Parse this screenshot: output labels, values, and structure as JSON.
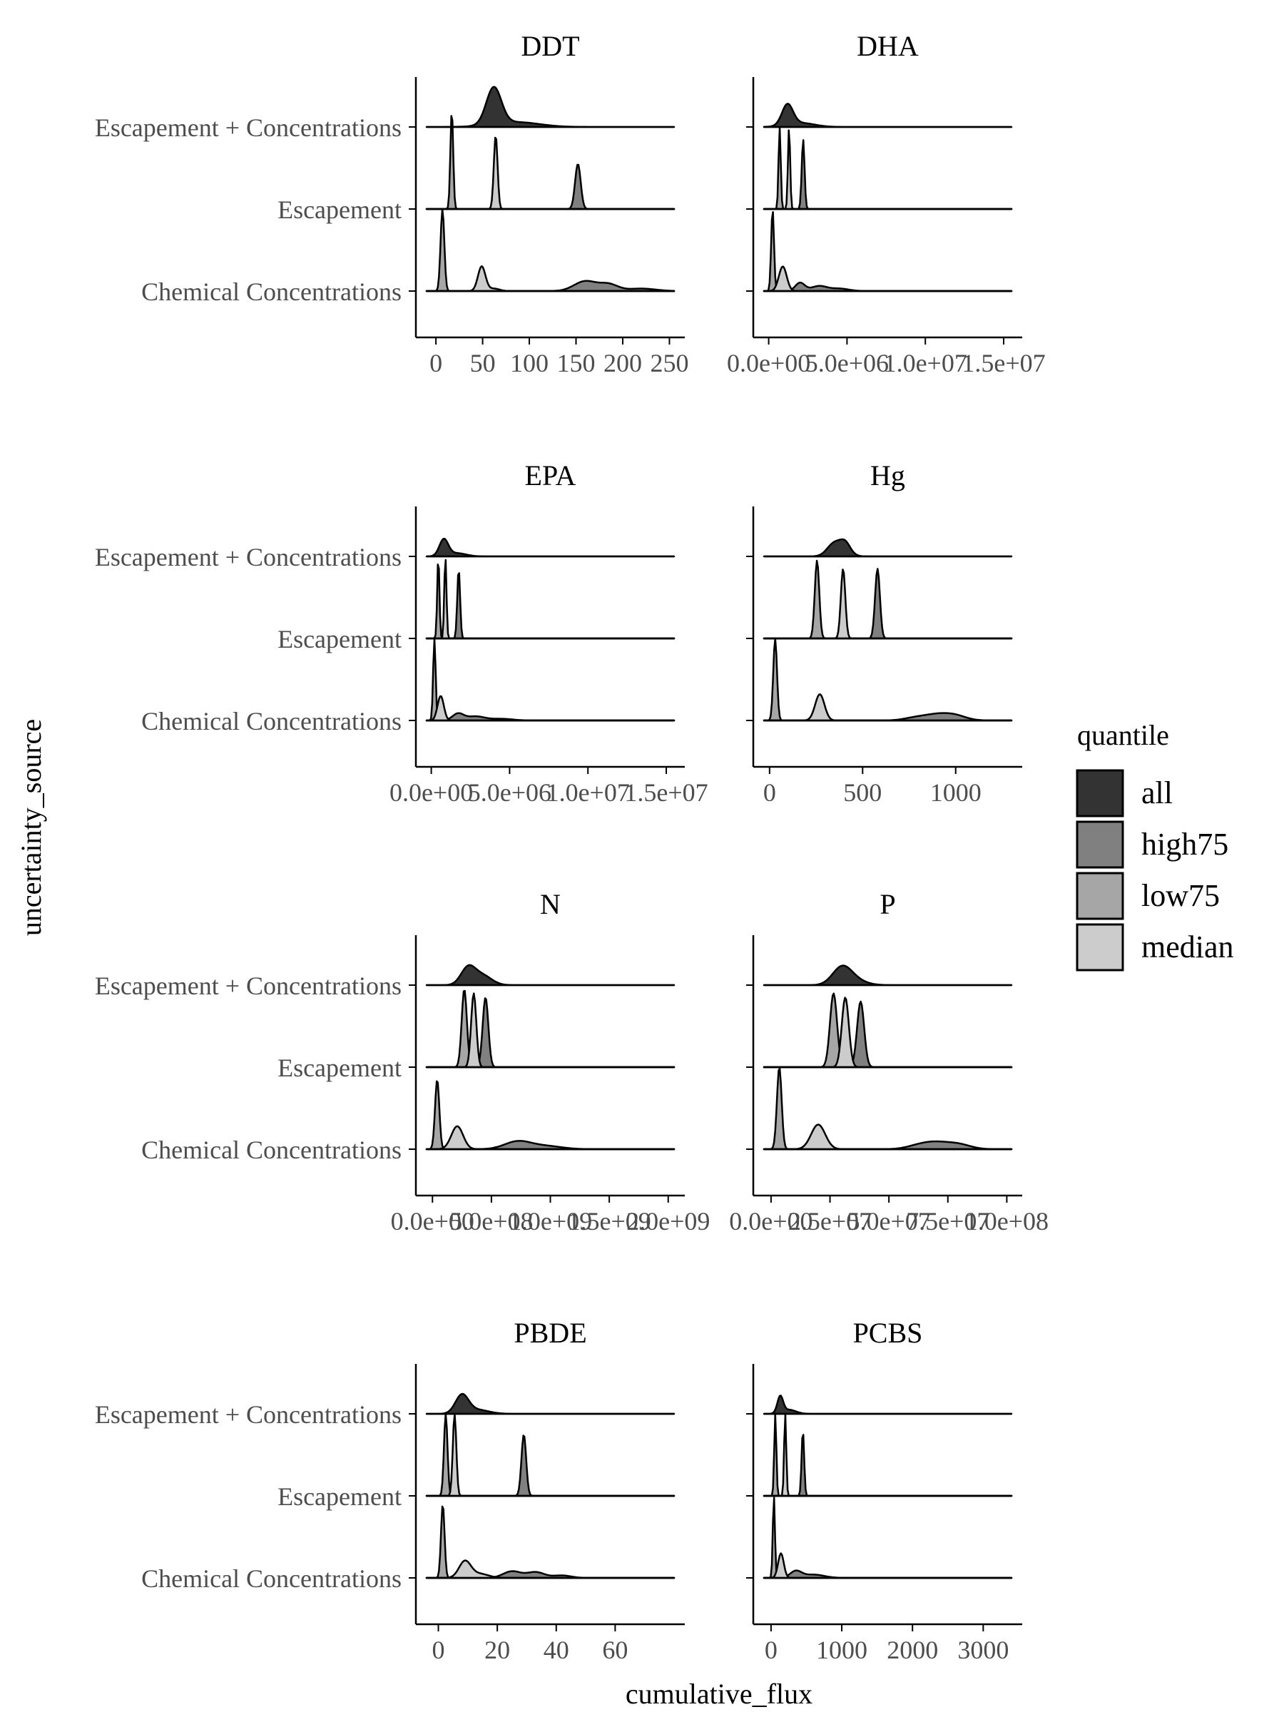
{
  "axes": {
    "xlabel": "cumulative_flux",
    "ylabel": "uncertainty_source"
  },
  "legend": {
    "title": "quantile",
    "placement": "right",
    "items": [
      {
        "label": "all",
        "color": "#333333"
      },
      {
        "label": "high75",
        "color": "#808080"
      },
      {
        "label": "low75",
        "color": "#a6a6a6"
      },
      {
        "label": "median",
        "color": "#cccccc"
      }
    ]
  },
  "chart_data": {
    "type": "ridgeline",
    "categories": [
      "Escapement + Concentrations",
      "Escapement",
      "Chemical Concentrations"
    ],
    "series_names": [
      "all",
      "high75",
      "low75",
      "median"
    ],
    "panels": [
      {
        "title": "DDT",
        "xlim": [
          -10,
          255
        ],
        "xticks": [
          0,
          50,
          100,
          150,
          200,
          250
        ],
        "xtick_labels": [
          "0",
          "50",
          "100",
          "150",
          "200",
          "250"
        ],
        "rows": {
          "Escapement + Concentrations": [
            {
              "quantile": "all",
              "peaks": [
                [
                  62,
                  8,
                  0.45
                ],
                [
                  85,
                  25,
                  0.06
                ]
              ]
            }
          ],
          "Escapement": [
            {
              "quantile": "low75",
              "peaks": [
                [
                  17,
                  1.5,
                  1.2
                ]
              ]
            },
            {
              "quantile": "high75",
              "peaks": [
                [
                  152,
                  3,
                  0.55
                ]
              ]
            },
            {
              "quantile": "median",
              "peaks": [
                [
                  64,
                  2,
                  0.9
                ]
              ]
            }
          ],
          "Chemical Concentrations": [
            {
              "quantile": "low75",
              "peaks": [
                [
                  7,
                  2,
                  1.0
                ]
              ]
            },
            {
              "quantile": "high75",
              "peaks": [
                [
                  160,
                  12,
                  0.12
                ],
                [
                  185,
                  10,
                  0.08
                ],
                [
                  220,
                  15,
                  0.03
                ]
              ]
            },
            {
              "quantile": "median",
              "peaks": [
                [
                  49,
                  4,
                  0.3
                ],
                [
                  62,
                  6,
                  0.03
                ]
              ]
            }
          ]
        }
      },
      {
        "title": "DHA",
        "xlim": [
          -300000,
          15500000
        ],
        "xticks": [
          0,
          5000000,
          10000000,
          15000000
        ],
        "xtick_labels": [
          "0.0e+00",
          "5.0e+06",
          "1.0e+07",
          "1.5e+07"
        ],
        "rows": {
          "Escapement + Concentrations": [
            {
              "quantile": "all",
              "peaks": [
                [
                  1200000,
                  350000,
                  0.25
                ],
                [
                  2000000,
                  900000,
                  0.05
                ]
              ]
            }
          ],
          "Escapement": [
            {
              "quantile": "low75",
              "peaks": [
                [
                  700000,
                  70000,
                  1.0
                ]
              ]
            },
            {
              "quantile": "high75",
              "peaks": [
                [
                  2200000,
                  90000,
                  0.85
                ]
              ]
            },
            {
              "quantile": "median",
              "peaks": [
                [
                  1300000,
                  70000,
                  1.0
                ]
              ]
            }
          ],
          "Chemical Concentrations": [
            {
              "quantile": "low75",
              "peaks": [
                [
                  250000,
                  90000,
                  1.0
                ]
              ]
            },
            {
              "quantile": "high75",
              "peaks": [
                [
                  2000000,
                  300000,
                  0.1
                ],
                [
                  3200000,
                  500000,
                  0.06
                ],
                [
                  4500000,
                  600000,
                  0.03
                ]
              ]
            },
            {
              "quantile": "median",
              "peaks": [
                [
                  900000,
                  250000,
                  0.3
                ]
              ]
            }
          ]
        }
      },
      {
        "title": "EPA",
        "xlim": [
          -300000,
          15500000
        ],
        "xticks": [
          0,
          5000000,
          10000000,
          15000000
        ],
        "xtick_labels": [
          "0.0e+00",
          "5.0e+06",
          "1.0e+07",
          "1.5e+07"
        ],
        "rows": {
          "Escapement + Concentrations": [
            {
              "quantile": "all",
              "peaks": [
                [
                  800000,
                  280000,
                  0.2
                ],
                [
                  1600000,
                  600000,
                  0.04
                ]
              ]
            }
          ],
          "Escapement": [
            {
              "quantile": "low75",
              "peaks": [
                [
                  450000,
                  70000,
                  1.0
                ]
              ]
            },
            {
              "quantile": "high75",
              "peaks": [
                [
                  1750000,
                  90000,
                  0.85
                ]
              ]
            },
            {
              "quantile": "median",
              "peaks": [
                [
                  900000,
                  70000,
                  1.0
                ]
              ]
            }
          ],
          "Chemical Concentrations": [
            {
              "quantile": "low75",
              "peaks": [
                [
                  200000,
                  80000,
                  1.0
                ]
              ]
            },
            {
              "quantile": "high75",
              "peaks": [
                [
                  1700000,
                  350000,
                  0.08
                ],
                [
                  2800000,
                  600000,
                  0.05
                ],
                [
                  4500000,
                  700000,
                  0.02
                ]
              ]
            },
            {
              "quantile": "median",
              "peaks": [
                [
                  600000,
                  200000,
                  0.3
                ]
              ]
            }
          ]
        }
      },
      {
        "title": "Hg",
        "xlim": [
          -30,
          1300
        ],
        "xticks": [
          0,
          500,
          1000
        ],
        "xtick_labels": [
          "0",
          "500",
          "1000"
        ],
        "rows": {
          "Escapement + Concentrations": [
            {
              "quantile": "all",
              "peaks": [
                [
                  370,
                  45,
                  0.16
                ],
                [
                  410,
                  25,
                  0.08
                ],
                [
                  330,
                  30,
                  0.04
                ]
              ]
            }
          ],
          "Escapement": [
            {
              "quantile": "low75",
              "peaks": [
                [
                  255,
                  12,
                  0.95
                ]
              ]
            },
            {
              "quantile": "high75",
              "peaks": [
                [
                  580,
                  13,
                  0.85
                ]
              ]
            },
            {
              "quantile": "median",
              "peaks": [
                [
                  395,
                  12,
                  0.85
                ]
              ]
            }
          ],
          "Chemical Concentrations": [
            {
              "quantile": "low75",
              "peaks": [
                [
                  30,
                  10,
                  1.0
                ]
              ]
            },
            {
              "quantile": "high75",
              "peaks": [
                [
                  900,
                  70,
                  0.07
                ],
                [
                  1000,
                  60,
                  0.05
                ],
                [
                  780,
                  60,
                  0.03
                ]
              ]
            },
            {
              "quantile": "median",
              "peaks": [
                [
                  270,
                  25,
                  0.32
                ]
              ]
            }
          ]
        }
      },
      {
        "title": "N",
        "xlim": [
          -50000000,
          2050000000
        ],
        "xticks": [
          0,
          500000000,
          1000000000,
          1500000000,
          2000000000
        ],
        "xtick_labels": [
          "0.0e+00",
          "5.0e+08",
          "1.0e+09",
          "1.5e+09",
          "2.0e+09"
        ],
        "rows": {
          "Escapement + Concentrations": [
            {
              "quantile": "all",
              "peaks": [
                [
                  300000000,
                  60000000,
                  0.2
                ],
                [
                  420000000,
                  80000000,
                  0.12
                ]
              ]
            }
          ],
          "Escapement": [
            {
              "quantile": "low75",
              "peaks": [
                [
                  270000000,
                  22000000,
                  0.95
                ]
              ]
            },
            {
              "quantile": "high75",
              "peaks": [
                [
                  450000000,
                  24000000,
                  0.85
                ]
              ]
            },
            {
              "quantile": "median",
              "peaks": [
                [
                  350000000,
                  22000000,
                  0.9
                ]
              ]
            }
          ],
          "Chemical Concentrations": [
            {
              "quantile": "low75",
              "peaks": [
                [
                  40000000,
                  18000000,
                  0.85
                ]
              ]
            },
            {
              "quantile": "high75",
              "peaks": [
                [
                  720000000,
                  110000000,
                  0.09
                ],
                [
                  950000000,
                  140000000,
                  0.04
                ]
              ]
            },
            {
              "quantile": "median",
              "peaks": [
                [
                  210000000,
                  50000000,
                  0.28
                ]
              ]
            }
          ]
        }
      },
      {
        "title": "P",
        "xlim": [
          -3000000,
          102000000
        ],
        "xticks": [
          0,
          25000000,
          50000000,
          75000000,
          100000000
        ],
        "xtick_labels": [
          "0.0e+00",
          "2.5e+07",
          "5.0e+07",
          "7.5e+07",
          "1.0e+08"
        ],
        "rows": {
          "Escapement + Concentrations": [
            {
              "quantile": "all",
              "peaks": [
                [
                  30000000,
                  4000000,
                  0.2
                ],
                [
                  35000000,
                  5000000,
                  0.06
                ]
              ]
            }
          ],
          "Escapement": [
            {
              "quantile": "low75",
              "peaks": [
                [
                  26500000,
                  1500000,
                  0.9
                ]
              ]
            },
            {
              "quantile": "high75",
              "peaks": [
                [
                  38000000,
                  1500000,
                  0.8
                ]
              ]
            },
            {
              "quantile": "median",
              "peaks": [
                [
                  31500000,
                  1500000,
                  0.85
                ]
              ]
            }
          ],
          "Chemical Concentrations": [
            {
              "quantile": "low75",
              "peaks": [
                [
                  3500000,
                  1000000,
                  1.0
                ]
              ]
            },
            {
              "quantile": "high75",
              "peaks": [
                [
                  70000000,
                  6000000,
                  0.08
                ],
                [
                  80000000,
                  5000000,
                  0.05
                ],
                [
                  62000000,
                  5000000,
                  0.03
                ]
              ]
            },
            {
              "quantile": "median",
              "peaks": [
                [
                  20000000,
                  3000000,
                  0.3
                ]
              ]
            }
          ]
        }
      },
      {
        "title": "PBDE",
        "xlim": [
          -4,
          80
        ],
        "xticks": [
          0,
          20,
          40,
          60
        ],
        "xtick_labels": [
          "0",
          "20",
          "40",
          "60"
        ],
        "rows": {
          "Escapement + Concentrations": [
            {
              "quantile": "all",
              "peaks": [
                [
                  8,
                  2.2,
                  0.22
                ],
                [
                  13,
                  4,
                  0.05
                ]
              ]
            }
          ],
          "Escapement": [
            {
              "quantile": "low75",
              "peaks": [
                [
                  2.5,
                  0.6,
                  1.0
                ]
              ]
            },
            {
              "quantile": "high75",
              "peaks": [
                [
                  29,
                  0.8,
                  0.75
                ]
              ]
            },
            {
              "quantile": "median",
              "peaks": [
                [
                  5.5,
                  0.6,
                  1.0
                ]
              ]
            }
          ],
          "Chemical Concentrations": [
            {
              "quantile": "low75",
              "peaks": [
                [
                  1.5,
                  0.6,
                  0.9
                ]
              ]
            },
            {
              "quantile": "high75",
              "peaks": [
                [
                  25,
                  3,
                  0.08
                ],
                [
                  33,
                  3,
                  0.07
                ],
                [
                  42,
                  3,
                  0.03
                ]
              ]
            },
            {
              "quantile": "median",
              "peaks": [
                [
                  9,
                  2,
                  0.2
                ],
                [
                  14,
                  3,
                  0.05
                ]
              ]
            }
          ]
        }
      },
      {
        "title": "PCBS",
        "xlim": [
          -100,
          3400
        ],
        "xticks": [
          0,
          1000,
          2000,
          3000
        ],
        "xtick_labels": [
          "0",
          "1000",
          "2000",
          "3000"
        ],
        "rows": {
          "Escapement + Concentrations": [
            {
              "quantile": "all",
              "peaks": [
                [
                  130,
                  40,
                  0.2
                ],
                [
                  250,
                  100,
                  0.05
                ]
              ]
            }
          ],
          "Escapement": [
            {
              "quantile": "low75",
              "peaks": [
                [
                  60,
                  15,
                  1.0
                ]
              ]
            },
            {
              "quantile": "high75",
              "peaks": [
                [
                  450,
                  18,
                  0.8
                ]
              ]
            },
            {
              "quantile": "median",
              "peaks": [
                [
                  200,
                  15,
                  1.0
                ]
              ]
            }
          ],
          "Chemical Concentrations": [
            {
              "quantile": "low75",
              "peaks": [
                [
                  40,
                  15,
                  1.0
                ]
              ]
            },
            {
              "quantile": "high75",
              "peaks": [
                [
                  350,
                  80,
                  0.08
                ],
                [
                  600,
                  150,
                  0.04
                ]
              ]
            },
            {
              "quantile": "median",
              "peaks": [
                [
                  140,
                  40,
                  0.3
                ]
              ]
            }
          ]
        }
      }
    ]
  }
}
